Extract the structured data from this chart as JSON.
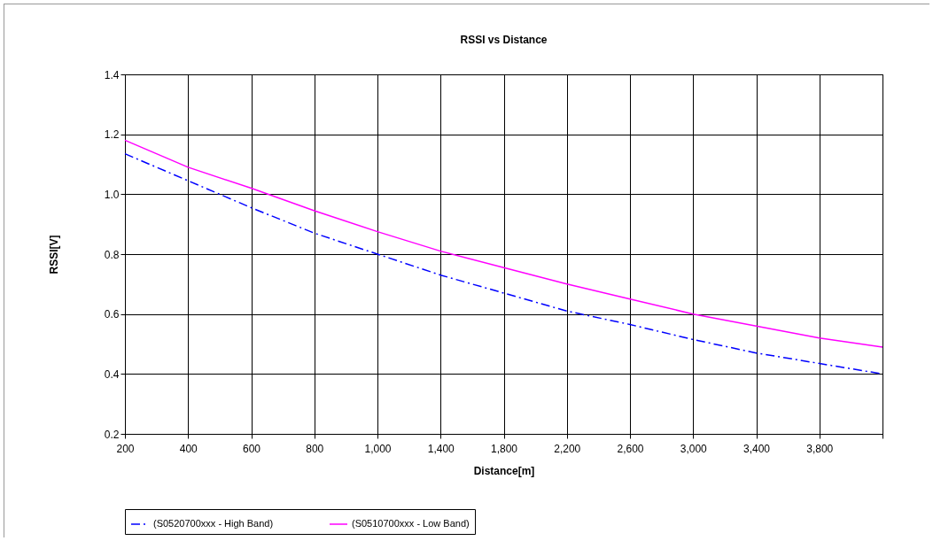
{
  "chart_data": {
    "type": "line",
    "title": "RSSI vs Distance",
    "xlabel": "Distance[m]",
    "ylabel": "RSSI[V]",
    "categories": [
      "200",
      "400",
      "600",
      "800",
      "1,000",
      "1,400",
      "1,800",
      "2,200",
      "2,600",
      "3,000",
      "3,400",
      "3,800",
      null
    ],
    "series": [
      {
        "name": "(S0520700xxx - High Band)",
        "color": "#0000ff",
        "line_style": "dashdot",
        "values": [
          1.135,
          1.045,
          0.955,
          0.87,
          0.8,
          0.73,
          0.67,
          0.61,
          0.565,
          0.515,
          0.47,
          0.435,
          0.4
        ]
      },
      {
        "name": "(S0510700xxx - Low Band)",
        "color": "#ff00ff",
        "line_style": "solid",
        "values": [
          1.18,
          1.09,
          1.02,
          0.945,
          0.875,
          0.81,
          0.755,
          0.7,
          0.65,
          0.6,
          0.56,
          0.52,
          0.49
        ]
      }
    ],
    "ylim": [
      0.2,
      1.4
    ],
    "yticks": [
      0.2,
      0.4,
      0.6,
      0.8,
      {
        "value": 1,
        "label": "1.0"
      },
      1.2,
      1.4
    ],
    "grid": true,
    "legend": "bottom",
    "marker": "none"
  }
}
